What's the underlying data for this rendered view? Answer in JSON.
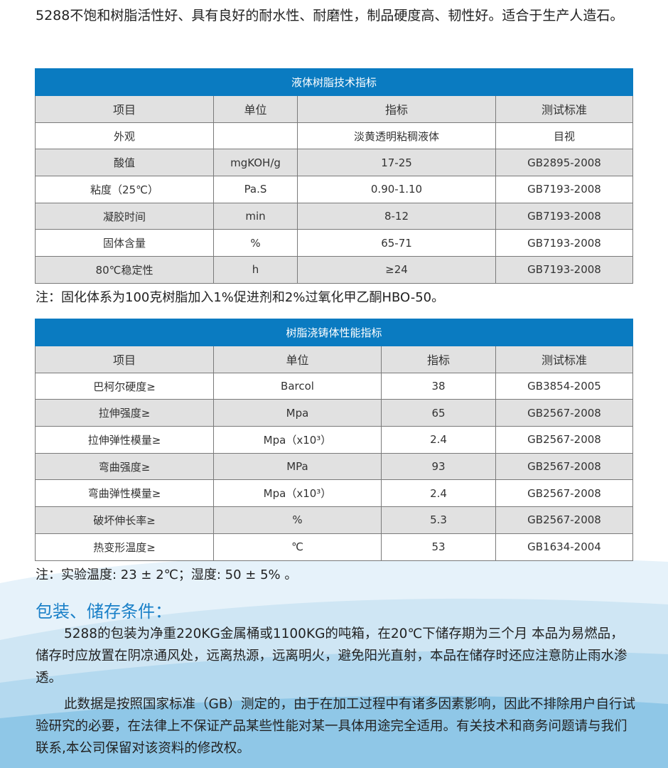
{
  "intro": "5288不饱和树脂活性好、具有良好的耐水性、耐磨性，制品硬度高、韧性好。适合于生产人造石。",
  "table1": {
    "title": "液体树脂技术指标",
    "headers": [
      "项目",
      "单位",
      "指标",
      "测试标准"
    ],
    "rows": [
      [
        "外观",
        "",
        "淡黄透明粘稠液体",
        "目视"
      ],
      [
        "酸值",
        "mgKOH/g",
        "17-25",
        "GB2895-2008"
      ],
      [
        "粘度（25℃）",
        "Pa.S",
        "0.90-1.10",
        "GB7193-2008"
      ],
      [
        "凝胶时间",
        "min",
        "8-12",
        "GB7193-2008"
      ],
      [
        "固体含量",
        "%",
        "65-71",
        "GB7193-2008"
      ],
      [
        "80℃稳定性",
        "h",
        "≥24",
        "GB7193-2008"
      ]
    ]
  },
  "note1": "注：固化体系为100克树脂加入1%促进剂和2%过氧化甲乙酮HBO-50。",
  "table2": {
    "title": "树脂浇铸体性能指标",
    "headers": [
      "项目",
      "单位",
      "指标",
      "测试标准"
    ],
    "rows": [
      [
        "巴柯尔硬度≥",
        "Barcol",
        "38",
        "GB3854-2005"
      ],
      [
        "拉伸强度≥",
        "Mpa",
        "65",
        "GB2567-2008"
      ],
      [
        "拉伸弹性模量≥",
        "Mpa（x10³）",
        "2.4",
        "GB2567-2008"
      ],
      [
        "弯曲强度≥",
        "MPa",
        "93",
        "GB2567-2008"
      ],
      [
        "弯曲弹性模量≥",
        "Mpa（x10³）",
        "2.4",
        "GB2567-2008"
      ],
      [
        "破坏伸长率≥",
        "%",
        "5.3",
        "GB2567-2008"
      ],
      [
        "热变形温度≥",
        "℃",
        "53",
        "GB1634-2004"
      ]
    ]
  },
  "note2": "注：实验温度: 23 ± 2℃；湿度: 50 ± 5% 。",
  "section_title": "包装、储存条件：",
  "para1": "5288的包装为净重220KG金属桶或1100KG的吨箱，在20℃下储存期为三个月 本品为易燃品，储存时应放置在阴凉通风处，远离热源，远离明火，避免阳光直射，本品在储存时还应注意防止雨水渗透。",
  "para2": "此数据是按照国家标准（GB）测定的，由于在加工过程中有诸多因素影响，因此不排除用户自行试验研究的必要，在法律上不保证产品某些性能对某一具体用途完全适用。有关技术和商务问题请与我们联系,本公司保留对该资料的修改权。",
  "colors": {
    "table_header": "#0a7bc1",
    "title": "#1a80c8",
    "row_gray": "#e1e1e1"
  }
}
